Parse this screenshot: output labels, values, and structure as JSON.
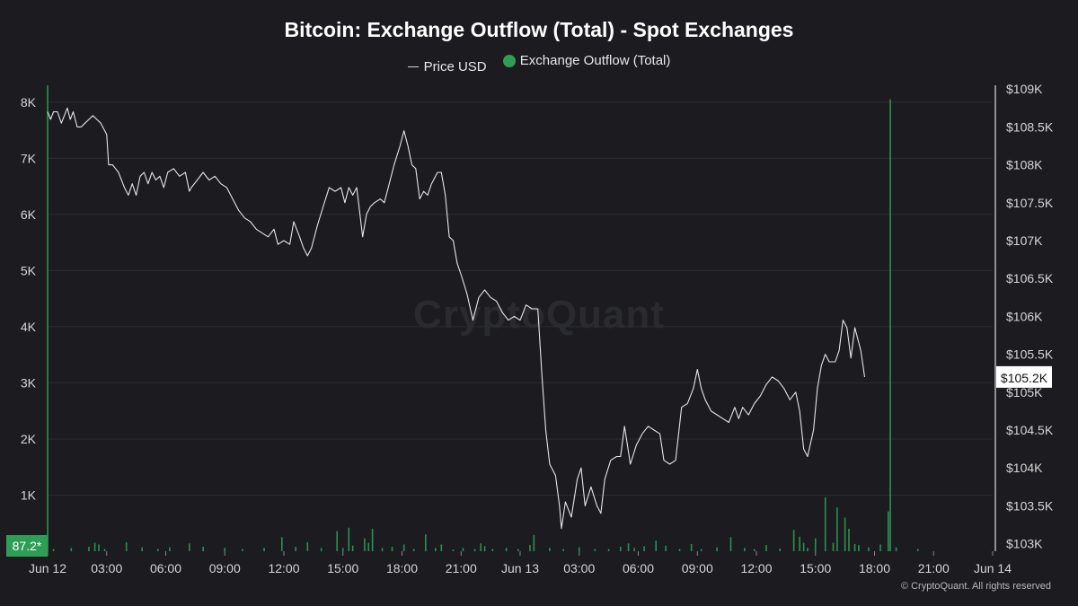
{
  "title": "Bitcoin: Exchange Outflow (Total) - Spot Exchanges",
  "legend": {
    "price_label": "Price USD",
    "outflow_label": "Exchange Outflow (Total)"
  },
  "watermark": "CryptoQuant",
  "copyright": "© CryptoQuant. All rights reserved",
  "colors": {
    "background": "#1b1b20",
    "price_line": "#e6e6e6",
    "outflow": "#2e9e56",
    "grid": "#2c2c33",
    "axis_text": "#d6d6d6"
  },
  "chart_data": {
    "type": "line",
    "title": "Bitcoin: Exchange Outflow (Total) - Spot Exchanges",
    "x_ticks": [
      "Jun 12",
      "03:00",
      "06:00",
      "09:00",
      "12:00",
      "15:00",
      "18:00",
      "21:00",
      "Jun 13",
      "03:00",
      "06:00",
      "09:00",
      "12:00",
      "15:00",
      "18:00",
      "21:00",
      "Jun 14"
    ],
    "x_range_hours": [
      0,
      48
    ],
    "y_left": {
      "label": "Exchange Outflow (Total)",
      "ticks": [
        "1K",
        "2K",
        "3K",
        "4K",
        "5K",
        "6K",
        "7K",
        "8K"
      ],
      "range": [
        0,
        8300
      ]
    },
    "y_right": {
      "label": "Price USD",
      "ticks": [
        "$103K",
        "$103.5K",
        "$104K",
        "$104.5K",
        "$105K",
        "$105.5K",
        "$106K",
        "$106.5K",
        "$107K",
        "$107.5K",
        "$108K",
        "$108.5K",
        "$109K"
      ],
      "range": [
        102900,
        109050
      ]
    },
    "grid": true,
    "legend_position": "top-center",
    "current_outflow_label": "87.2*",
    "current_price_label": "$105.2K",
    "series": [
      {
        "name": "Price USD",
        "axis": "right",
        "points": [
          [
            0.0,
            108700
          ],
          [
            0.15,
            108600
          ],
          [
            0.3,
            108700
          ],
          [
            0.5,
            108700
          ],
          [
            0.7,
            108550
          ],
          [
            0.85,
            108650
          ],
          [
            1.0,
            108750
          ],
          [
            1.15,
            108600
          ],
          [
            1.3,
            108700
          ],
          [
            1.5,
            108500
          ],
          [
            1.7,
            108500
          ],
          [
            1.9,
            108550
          ],
          [
            2.1,
            108600
          ],
          [
            2.3,
            108650
          ],
          [
            2.5,
            108600
          ],
          [
            2.7,
            108550
          ],
          [
            3.0,
            108400
          ],
          [
            3.1,
            108000
          ],
          [
            3.3,
            108000
          ],
          [
            3.6,
            107900
          ],
          [
            3.9,
            107700
          ],
          [
            4.1,
            107600
          ],
          [
            4.3,
            107750
          ],
          [
            4.5,
            107600
          ],
          [
            4.7,
            107850
          ],
          [
            4.9,
            107900
          ],
          [
            5.1,
            107750
          ],
          [
            5.3,
            107900
          ],
          [
            5.5,
            107800
          ],
          [
            5.7,
            107850
          ],
          [
            5.9,
            107700
          ],
          [
            6.1,
            107900
          ],
          [
            6.4,
            107950
          ],
          [
            6.7,
            107850
          ],
          [
            7.0,
            107900
          ],
          [
            7.2,
            107650
          ],
          [
            7.3,
            107700
          ],
          [
            7.6,
            107800
          ],
          [
            7.9,
            107900
          ],
          [
            8.2,
            107800
          ],
          [
            8.5,
            107850
          ],
          [
            8.8,
            107750
          ],
          [
            9.1,
            107700
          ],
          [
            9.4,
            107550
          ],
          [
            9.7,
            107400
          ],
          [
            10.0,
            107300
          ],
          [
            10.3,
            107250
          ],
          [
            10.6,
            107150
          ],
          [
            10.9,
            107100
          ],
          [
            11.2,
            107050
          ],
          [
            11.5,
            107150
          ],
          [
            11.7,
            106950
          ],
          [
            12.0,
            107000
          ],
          [
            12.3,
            106950
          ],
          [
            12.5,
            107250
          ],
          [
            12.8,
            107050
          ],
          [
            13.0,
            106900
          ],
          [
            13.2,
            106800
          ],
          [
            13.4,
            106900
          ],
          [
            13.7,
            107200
          ],
          [
            14.0,
            107450
          ],
          [
            14.3,
            107700
          ],
          [
            14.6,
            107650
          ],
          [
            14.9,
            107700
          ],
          [
            15.1,
            107500
          ],
          [
            15.3,
            107700
          ],
          [
            15.5,
            107600
          ],
          [
            15.7,
            107700
          ],
          [
            16.0,
            107050
          ],
          [
            16.2,
            107350
          ],
          [
            16.4,
            107450
          ],
          [
            16.6,
            107500
          ],
          [
            16.9,
            107550
          ],
          [
            17.1,
            107500
          ],
          [
            17.3,
            107700
          ],
          [
            17.6,
            108000
          ],
          [
            17.9,
            108250
          ],
          [
            18.1,
            108450
          ],
          [
            18.3,
            108250
          ],
          [
            18.5,
            108000
          ],
          [
            18.7,
            107950
          ],
          [
            18.9,
            107550
          ],
          [
            19.1,
            107650
          ],
          [
            19.3,
            107600
          ],
          [
            19.5,
            107750
          ],
          [
            19.8,
            107900
          ],
          [
            20.0,
            107900
          ],
          [
            20.2,
            107600
          ],
          [
            20.4,
            107050
          ],
          [
            20.6,
            107000
          ],
          [
            20.8,
            106700
          ],
          [
            21.0,
            106550
          ],
          [
            21.3,
            106300
          ],
          [
            21.6,
            105950
          ],
          [
            21.9,
            106250
          ],
          [
            22.2,
            106350
          ],
          [
            22.5,
            106250
          ],
          [
            22.8,
            106200
          ],
          [
            23.1,
            106050
          ],
          [
            23.4,
            105950
          ],
          [
            23.7,
            106000
          ],
          [
            24.0,
            105950
          ],
          [
            24.3,
            106150
          ],
          [
            24.6,
            106100
          ],
          [
            24.9,
            106100
          ],
          [
            25.1,
            105250
          ],
          [
            25.3,
            104500
          ],
          [
            25.5,
            104050
          ],
          [
            25.8,
            103900
          ],
          [
            26.0,
            103500
          ],
          [
            26.1,
            103200
          ],
          [
            26.3,
            103550
          ],
          [
            26.6,
            103350
          ],
          [
            26.9,
            103850
          ],
          [
            27.1,
            104000
          ],
          [
            27.3,
            103500
          ],
          [
            27.6,
            103750
          ],
          [
            27.9,
            103500
          ],
          [
            28.1,
            103400
          ],
          [
            28.3,
            103850
          ],
          [
            28.6,
            104100
          ],
          [
            28.9,
            104150
          ],
          [
            29.1,
            104150
          ],
          [
            29.3,
            104550
          ],
          [
            29.6,
            104050
          ],
          [
            29.9,
            104300
          ],
          [
            30.2,
            104450
          ],
          [
            30.5,
            104550
          ],
          [
            30.8,
            104500
          ],
          [
            31.1,
            104450
          ],
          [
            31.3,
            104100
          ],
          [
            31.6,
            104050
          ],
          [
            31.9,
            104100
          ],
          [
            32.2,
            104800
          ],
          [
            32.5,
            104850
          ],
          [
            32.8,
            105050
          ],
          [
            33.0,
            105300
          ],
          [
            33.2,
            105050
          ],
          [
            33.4,
            104900
          ],
          [
            33.7,
            104750
          ],
          [
            34.0,
            104700
          ],
          [
            34.3,
            104650
          ],
          [
            34.6,
            104600
          ],
          [
            34.9,
            104800
          ],
          [
            35.1,
            104650
          ],
          [
            35.3,
            104800
          ],
          [
            35.6,
            104700
          ],
          [
            35.9,
            104850
          ],
          [
            36.2,
            104950
          ],
          [
            36.5,
            105100
          ],
          [
            36.8,
            105200
          ],
          [
            37.1,
            105150
          ],
          [
            37.4,
            105050
          ],
          [
            37.7,
            104900
          ],
          [
            38.0,
            105000
          ],
          [
            38.2,
            104750
          ],
          [
            38.4,
            104250
          ],
          [
            38.6,
            104150
          ],
          [
            38.9,
            104500
          ],
          [
            39.1,
            105050
          ],
          [
            39.3,
            105350
          ],
          [
            39.5,
            105500
          ],
          [
            39.7,
            105400
          ],
          [
            40.0,
            105400
          ],
          [
            40.2,
            105550
          ],
          [
            40.4,
            105950
          ],
          [
            40.6,
            105850
          ],
          [
            40.8,
            105450
          ],
          [
            41.0,
            105850
          ],
          [
            41.3,
            105550
          ],
          [
            41.5,
            105200
          ]
        ]
      },
      {
        "name": "Exchange Outflow (Total)",
        "axis": "left",
        "type": "bar",
        "points": [
          [
            0.0,
            8300
          ],
          [
            0.3,
            40
          ],
          [
            1.2,
            60
          ],
          [
            2.1,
            80
          ],
          [
            2.4,
            150
          ],
          [
            2.6,
            120
          ],
          [
            2.9,
            40
          ],
          [
            4.0,
            160
          ],
          [
            4.8,
            70
          ],
          [
            5.6,
            40
          ],
          [
            6.2,
            70
          ],
          [
            7.2,
            140
          ],
          [
            7.9,
            80
          ],
          [
            9.0,
            60
          ],
          [
            9.9,
            40
          ],
          [
            11.0,
            60
          ],
          [
            11.9,
            250
          ],
          [
            12.6,
            80
          ],
          [
            13.2,
            160
          ],
          [
            13.9,
            60
          ],
          [
            14.7,
            360
          ],
          [
            15.0,
            60
          ],
          [
            15.3,
            420
          ],
          [
            15.5,
            100
          ],
          [
            16.1,
            230
          ],
          [
            16.3,
            150
          ],
          [
            16.5,
            400
          ],
          [
            17.0,
            60
          ],
          [
            17.5,
            80
          ],
          [
            18.1,
            120
          ],
          [
            18.6,
            40
          ],
          [
            19.2,
            300
          ],
          [
            19.7,
            60
          ],
          [
            20.0,
            120
          ],
          [
            20.6,
            30
          ],
          [
            21.1,
            60
          ],
          [
            21.7,
            40
          ],
          [
            22.0,
            140
          ],
          [
            22.2,
            90
          ],
          [
            22.6,
            40
          ],
          [
            23.3,
            60
          ],
          [
            23.9,
            40
          ],
          [
            24.5,
            110
          ],
          [
            24.7,
            290
          ],
          [
            25.5,
            60
          ],
          [
            26.2,
            40
          ],
          [
            27.0,
            70
          ],
          [
            27.8,
            40
          ],
          [
            28.5,
            40
          ],
          [
            29.1,
            80
          ],
          [
            29.5,
            140
          ],
          [
            29.8,
            60
          ],
          [
            30.3,
            90
          ],
          [
            30.9,
            190
          ],
          [
            31.4,
            100
          ],
          [
            32.1,
            40
          ],
          [
            32.7,
            130
          ],
          [
            33.2,
            40
          ],
          [
            34.0,
            70
          ],
          [
            34.7,
            250
          ],
          [
            35.4,
            60
          ],
          [
            35.9,
            40
          ],
          [
            36.5,
            110
          ],
          [
            37.2,
            50
          ],
          [
            37.9,
            380
          ],
          [
            38.2,
            260
          ],
          [
            38.4,
            150
          ],
          [
            38.6,
            60
          ],
          [
            39.0,
            230
          ],
          [
            39.5,
            960
          ],
          [
            39.9,
            150
          ],
          [
            40.1,
            780
          ],
          [
            40.5,
            600
          ],
          [
            40.7,
            400
          ],
          [
            41.0,
            130
          ],
          [
            41.2,
            110
          ],
          [
            41.7,
            70
          ],
          [
            42.3,
            120
          ],
          [
            42.7,
            710
          ],
          [
            42.8,
            8050
          ],
          [
            43.1,
            70
          ],
          [
            44.2,
            40
          ]
        ]
      }
    ]
  }
}
